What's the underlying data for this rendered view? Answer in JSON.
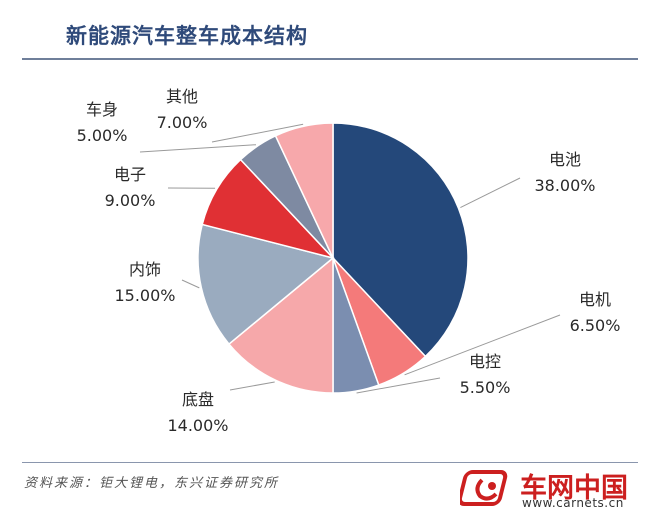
{
  "chart_data": {
    "type": "pie",
    "title": "新能源汽车整车成本结构",
    "slices": [
      {
        "label": "电池",
        "value": 38.0,
        "display": "38.00%",
        "color": "#24487a"
      },
      {
        "label": "电机",
        "value": 6.5,
        "display": "6.50%",
        "color": "#f47a7a"
      },
      {
        "label": "电控",
        "value": 5.5,
        "display": "5.50%",
        "color": "#7b8eb0"
      },
      {
        "label": "底盘",
        "value": 14.0,
        "display": "14.00%",
        "color": "#f6a8aa"
      },
      {
        "label": "内饰",
        "value": 15.0,
        "display": "15.00%",
        "color": "#9aabbf"
      },
      {
        "label": "电子",
        "value": 9.0,
        "display": "9.00%",
        "color": "#e03034"
      },
      {
        "label": "车身",
        "value": 5.0,
        "display": "5.00%",
        "color": "#7e8aa2"
      },
      {
        "label": "其他",
        "value": 7.0,
        "display": "7.00%",
        "color": "#f7a8ab"
      }
    ]
  },
  "source": "资料来源：钜大锂电，东兴证券研究所",
  "logo": {
    "name": "车网中国",
    "url": "www.carnets.cn"
  }
}
